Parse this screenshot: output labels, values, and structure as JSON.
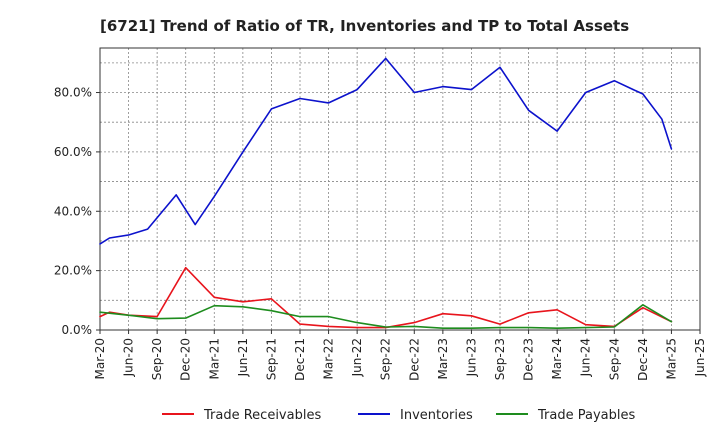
{
  "chart_data": {
    "type": "line",
    "title": "[6721]  Trend of Ratio of TR, Inventories and TP to Total Assets",
    "xlabel": "",
    "ylabel": "",
    "x": [
      "Mar-20",
      "Jun-20",
      "Sep-20",
      "Dec-20",
      "Mar-21",
      "Jun-21",
      "Sep-21",
      "Dec-21",
      "Mar-22",
      "Jun-22",
      "Sep-22",
      "Dec-22",
      "Mar-23",
      "Jun-23",
      "Sep-23",
      "Dec-23",
      "Mar-24",
      "Jun-24",
      "Sep-24",
      "Dec-24",
      "Mar-25",
      "Jun-25"
    ],
    "data_x_start": "Mar-20",
    "ylim": [
      0,
      95
    ],
    "yticks": [
      0,
      20,
      40,
      60,
      80
    ],
    "ytick_labels": [
      "0.0%",
      "20.0%",
      "40.0%",
      "60.0%",
      "80.0%"
    ],
    "grid": true,
    "legend_position": "bottom",
    "series": [
      {
        "name": "Trade Receivables",
        "color": "#e8141c",
        "points": [
          [
            "Mar-20",
            4.5
          ],
          [
            "Apr-20",
            6.0
          ],
          [
            "Jun-20",
            5.0
          ],
          [
            "Sep-20",
            4.5
          ],
          [
            "Dec-20",
            21.0
          ],
          [
            "Mar-21",
            11.0
          ],
          [
            "Jun-21",
            9.5
          ],
          [
            "Sep-21",
            10.5
          ],
          [
            "Dec-21",
            2.0
          ],
          [
            "Mar-22",
            1.2
          ],
          [
            "Jun-22",
            0.8
          ],
          [
            "Sep-22",
            0.8
          ],
          [
            "Dec-22",
            2.5
          ],
          [
            "Mar-23",
            5.5
          ],
          [
            "Jun-23",
            4.8
          ],
          [
            "Sep-23",
            2.0
          ],
          [
            "Dec-23",
            5.8
          ],
          [
            "Mar-24",
            6.8
          ],
          [
            "Jun-24",
            1.8
          ],
          [
            "Sep-24",
            1.2
          ],
          [
            "Dec-24",
            7.5
          ],
          [
            "Mar-25",
            2.8
          ]
        ]
      },
      {
        "name": "Inventories",
        "color": "#0c12cc",
        "points": [
          [
            "Mar-20",
            29.0
          ],
          [
            "Apr-20",
            31.0
          ],
          [
            "Jun-20",
            32.0
          ],
          [
            "Aug-20",
            34.0
          ],
          [
            "Nov-20",
            45.5
          ],
          [
            "Jan-21",
            35.5
          ],
          [
            "Mar-21",
            45.0
          ],
          [
            "Jun-21",
            60.0
          ],
          [
            "Sep-21",
            74.5
          ],
          [
            "Dec-21",
            78.0
          ],
          [
            "Mar-22",
            76.5
          ],
          [
            "Jun-22",
            81.0
          ],
          [
            "Sep-22",
            91.5
          ],
          [
            "Dec-22",
            80.0
          ],
          [
            "Mar-23",
            82.0
          ],
          [
            "Jun-23",
            81.0
          ],
          [
            "Sep-23",
            88.5
          ],
          [
            "Dec-23",
            74.0
          ],
          [
            "Mar-24",
            67.0
          ],
          [
            "Jun-24",
            80.0
          ],
          [
            "Sep-24",
            84.0
          ],
          [
            "Nov-24",
            81.0
          ],
          [
            "Dec-24",
            79.5
          ],
          [
            "Feb-25",
            71.0
          ],
          [
            "Mar-25",
            61.0
          ]
        ]
      },
      {
        "name": "Trade Payables",
        "color": "#1e8c1e",
        "points": [
          [
            "Mar-20",
            6.0
          ],
          [
            "Jun-20",
            5.0
          ],
          [
            "Sep-20",
            3.8
          ],
          [
            "Dec-20",
            4.0
          ],
          [
            "Mar-21",
            8.2
          ],
          [
            "Jun-21",
            7.8
          ],
          [
            "Sep-21",
            6.5
          ],
          [
            "Dec-21",
            4.5
          ],
          [
            "Mar-22",
            4.5
          ],
          [
            "Jun-22",
            2.5
          ],
          [
            "Sep-22",
            1.0
          ],
          [
            "Dec-22",
            1.2
          ],
          [
            "Mar-23",
            0.6
          ],
          [
            "Jun-23",
            0.6
          ],
          [
            "Sep-23",
            0.8
          ],
          [
            "Dec-23",
            0.8
          ],
          [
            "Mar-24",
            0.6
          ],
          [
            "Jun-24",
            0.8
          ],
          [
            "Sep-24",
            1.0
          ],
          [
            "Dec-24",
            8.5
          ],
          [
            "Mar-25",
            2.8
          ]
        ]
      }
    ]
  },
  "colors": {
    "grid": "#888888",
    "axis": "#333333",
    "text": "#222222",
    "background": "#ffffff"
  }
}
